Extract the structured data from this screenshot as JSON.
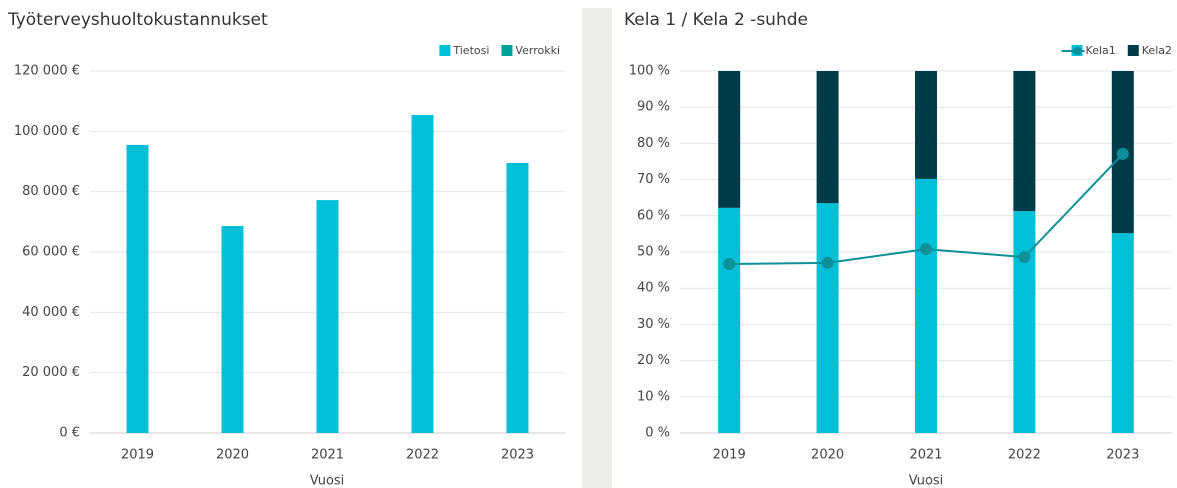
{
  "chart_data": [
    {
      "type": "bar",
      "title": "Työterveyshuoltokustannukset",
      "x_label": "Vuosi",
      "categories": [
        "2019",
        "2020",
        "2021",
        "2022",
        "2023"
      ],
      "series": [
        {
          "name": "Tietosi",
          "color": "#00bfd6",
          "values": [
            95500,
            68600,
            77200,
            105400,
            89500
          ]
        },
        {
          "name": "Verrokki",
          "color": "#00a39a",
          "values": [
            null,
            null,
            null,
            null,
            null
          ]
        }
      ],
      "ylim": [
        0,
        120000
      ],
      "yticks": [
        {
          "value": 0,
          "label": "0 €"
        },
        {
          "value": 20000,
          "label": "20 000 €"
        },
        {
          "value": 40000,
          "label": "40 000 €"
        },
        {
          "value": 60000,
          "label": "60 000 €"
        },
        {
          "value": 80000,
          "label": "80 000 €"
        },
        {
          "value": 100000,
          "label": "100 000 €"
        },
        {
          "value": 120000,
          "label": "120 000 €"
        }
      ],
      "grid": true
    },
    {
      "type": "combo",
      "title": "Kela 1 / Kela 2 -suhde",
      "x_label": "Vuosi",
      "categories": [
        "2019",
        "2020",
        "2021",
        "2022",
        "2023"
      ],
      "series": [
        {
          "name": "Kela1",
          "type": "bar",
          "color": "#00bfd6",
          "values": [
            62.2,
            63.5,
            70.2,
            61.3,
            55.2
          ]
        },
        {
          "name": "Kela2",
          "type": "bar",
          "color": "#003b4a",
          "values": [
            37.8,
            36.5,
            29.8,
            38.7,
            44.8
          ]
        },
        {
          "type": "line",
          "color": "#0e9098",
          "values": [
            46.7,
            47,
            50.8,
            48.6,
            77.1
          ]
        }
      ],
      "stacked": true,
      "ylim": [
        0,
        100
      ],
      "yticks": [
        {
          "value": 0,
          "label": "0 %"
        },
        {
          "value": 10,
          "label": "10 %"
        },
        {
          "value": 20,
          "label": "20 %"
        },
        {
          "value": 30,
          "label": "30 %"
        },
        {
          "value": 40,
          "label": "40 %"
        },
        {
          "value": 50,
          "label": "50 %"
        },
        {
          "value": 60,
          "label": "60 %"
        },
        {
          "value": 70,
          "label": "70 %"
        },
        {
          "value": 80,
          "label": "80 %"
        },
        {
          "value": 90,
          "label": "90 %"
        },
        {
          "value": 100,
          "label": "100 %"
        }
      ],
      "grid": true
    }
  ]
}
